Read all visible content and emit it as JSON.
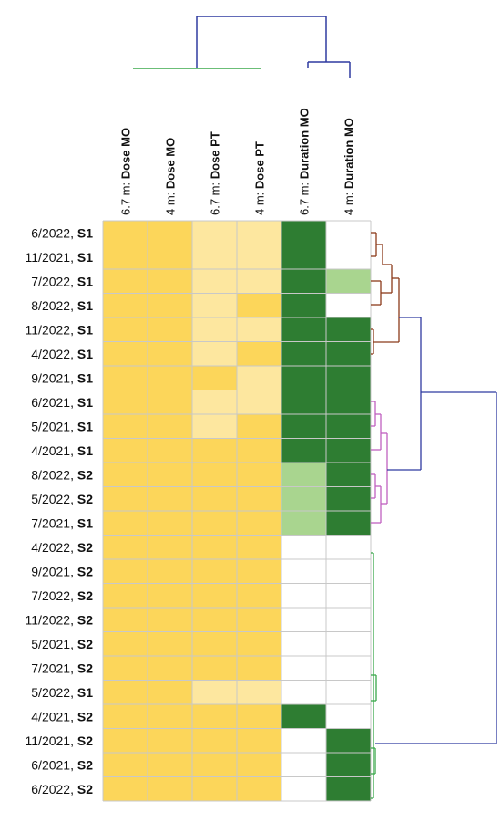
{
  "chart_data": {
    "type": "heatmap",
    "columns": [
      {
        "prefix": "6.7 m: ",
        "name": "Dose MO"
      },
      {
        "prefix": "4 m: ",
        "name": "Dose MO"
      },
      {
        "prefix": "6.7 m: ",
        "name": "Dose PT"
      },
      {
        "prefix": "4 m: ",
        "name": "Dose PT"
      },
      {
        "prefix": "6.7 m: ",
        "name": "Duration MO"
      },
      {
        "prefix": "4 m: ",
        "name": "Duration MO"
      }
    ],
    "rows": [
      {
        "date": "6/2022, ",
        "site": "S1"
      },
      {
        "date": "11/2021, ",
        "site": "S1"
      },
      {
        "date": "7/2022, ",
        "site": "S1"
      },
      {
        "date": "8/2022, ",
        "site": "S1"
      },
      {
        "date": "11/2022, ",
        "site": "S1"
      },
      {
        "date": "4/2022, ",
        "site": "S1"
      },
      {
        "date": "9/2021, ",
        "site": "S1"
      },
      {
        "date": "6/2021, ",
        "site": "S1"
      },
      {
        "date": "5/2021, ",
        "site": "S1"
      },
      {
        "date": "4/2021, ",
        "site": "S1"
      },
      {
        "date": "8/2022, ",
        "site": "S2"
      },
      {
        "date": "5/2022, ",
        "site": "S2"
      },
      {
        "date": "7/2021, ",
        "site": "S1"
      },
      {
        "date": "4/2022, ",
        "site": "S2"
      },
      {
        "date": "9/2021, ",
        "site": "S2"
      },
      {
        "date": "7/2022, ",
        "site": "S2"
      },
      {
        "date": "11/2022, ",
        "site": "S2"
      },
      {
        "date": "5/2021, ",
        "site": "S2"
      },
      {
        "date": "7/2021, ",
        "site": "S2"
      },
      {
        "date": "5/2022, ",
        "site": "S1"
      },
      {
        "date": "4/2021, ",
        "site": "S2"
      },
      {
        "date": "11/2021, ",
        "site": "S2"
      },
      {
        "date": "6/2021, ",
        "site": "S2"
      },
      {
        "date": "6/2022, ",
        "site": "S2"
      }
    ],
    "dose_levels_note": "1 = light yellow, 2 = gold",
    "dose_values": [
      [
        2,
        2,
        1,
        1
      ],
      [
        2,
        2,
        1,
        1
      ],
      [
        2,
        2,
        1,
        1
      ],
      [
        2,
        2,
        1,
        2
      ],
      [
        2,
        2,
        1,
        1
      ],
      [
        2,
        2,
        1,
        2
      ],
      [
        2,
        2,
        2,
        1
      ],
      [
        2,
        2,
        1,
        1
      ],
      [
        2,
        2,
        1,
        2
      ],
      [
        2,
        2,
        2,
        2
      ],
      [
        2,
        2,
        2,
        2
      ],
      [
        2,
        2,
        2,
        2
      ],
      [
        2,
        2,
        2,
        2
      ],
      [
        2,
        2,
        2,
        2
      ],
      [
        2,
        2,
        2,
        2
      ],
      [
        2,
        2,
        2,
        2
      ],
      [
        2,
        2,
        2,
        2
      ],
      [
        2,
        2,
        2,
        2
      ],
      [
        2,
        2,
        2,
        2
      ],
      [
        2,
        2,
        1,
        1
      ],
      [
        2,
        2,
        2,
        2
      ],
      [
        2,
        2,
        2,
        2
      ],
      [
        2,
        2,
        2,
        2
      ],
      [
        2,
        2,
        2,
        2
      ]
    ],
    "duration_levels_note": "0 = white, 1 = light green, 2 = dark green",
    "duration_values": [
      [
        2,
        0
      ],
      [
        2,
        0
      ],
      [
        2,
        1
      ],
      [
        2,
        0
      ],
      [
        2,
        2
      ],
      [
        2,
        2
      ],
      [
        2,
        2
      ],
      [
        2,
        2
      ],
      [
        2,
        2
      ],
      [
        2,
        2
      ],
      [
        1,
        2
      ],
      [
        1,
        2
      ],
      [
        1,
        2
      ],
      [
        0,
        0
      ],
      [
        0,
        0
      ],
      [
        0,
        0
      ],
      [
        0,
        0
      ],
      [
        0,
        0
      ],
      [
        0,
        0
      ],
      [
        0,
        0
      ],
      [
        2,
        0
      ],
      [
        0,
        2
      ],
      [
        0,
        2
      ],
      [
        0,
        2
      ]
    ],
    "colors": {
      "dose_high": "#fcd65a",
      "dose_low": "#fde79f",
      "duration_high": "#2e7d32",
      "duration_mid": "#a9d58f",
      "duration_none": "#ffffff",
      "grid": "#c8c8c8",
      "tree_top": "#2f3aa0",
      "tree_green": "#3aa84a",
      "tree_brown": "#8b3a1a",
      "tree_magenta": "#c060c0"
    },
    "column_dendrogram": "cols 1-4 cluster (green), cols 5-6 cluster (blue), joined at top",
    "row_dendrogram": "rows 1-5 brown cluster, rows 6-13 magenta cluster, rows 14-24 green cluster, joined by blue links"
  }
}
